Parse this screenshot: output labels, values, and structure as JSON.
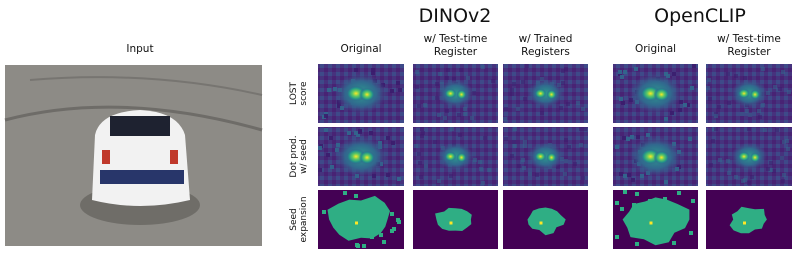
{
  "input_label": "Input",
  "groups": [
    {
      "title": "DINOv2",
      "columns": [
        [
          "Original"
        ],
        [
          "w/ Test-time",
          "Register"
        ],
        [
          "w/ Trained",
          "Registers"
        ]
      ]
    },
    {
      "title": "OpenCLIP",
      "columns": [
        [
          "Original"
        ],
        [
          "w/ Test-time",
          "Register"
        ]
      ]
    }
  ],
  "rows": [
    [
      "LOST",
      "score"
    ],
    [
      "Dot prod.",
      "w/ seed"
    ],
    [
      "Seed",
      "expansion"
    ]
  ]
}
